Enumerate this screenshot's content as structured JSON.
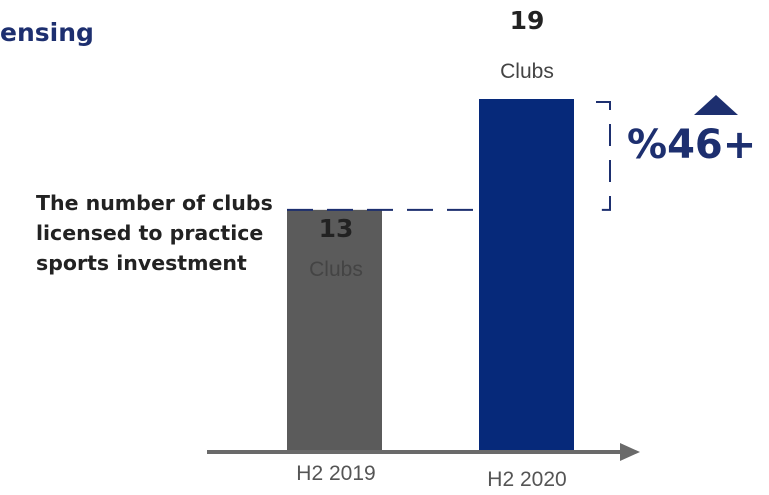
{
  "header": {
    "title": "ensing"
  },
  "side_label": "The number of clubs licensed to practice sports investment",
  "growth_label": "%46+",
  "colors": {
    "bar_2019": "#5b5b5b",
    "bar_2020": "#06297a",
    "accent": "#1d2f6f",
    "axis": "#6a6a6a"
  },
  "chart_data": {
    "type": "bar",
    "categories": [
      "H2 2019",
      "H2 2020"
    ],
    "values": [
      13,
      19
    ],
    "value_labels": [
      "13",
      "19"
    ],
    "unit_label": "Clubs",
    "ylim": [
      0,
      19
    ],
    "grid": false,
    "annotation": {
      "text": "%46+",
      "from": 13,
      "to": 19
    }
  }
}
